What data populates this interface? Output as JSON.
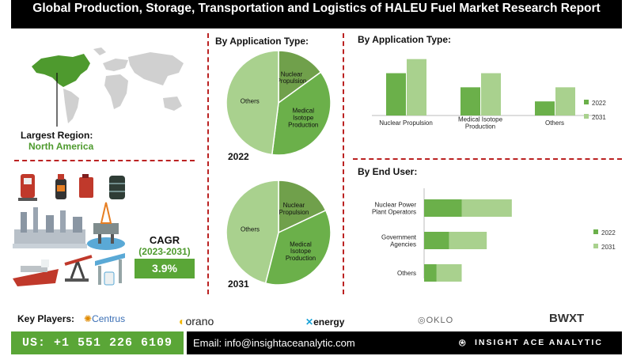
{
  "title": "Global Production, Storage, Transportation and Logistics of HALEU Fuel Market Research Report",
  "region": {
    "label": "Largest Region:",
    "value": "North America"
  },
  "cagr": {
    "label": "CAGR",
    "years": "(2023-2031)",
    "value": "3.9%"
  },
  "key_players": {
    "label": "Key Players:",
    "logos": [
      "Centrus",
      "orano",
      "energy",
      "OKLO",
      "BWXT"
    ]
  },
  "contact": {
    "phone": "US: +1 551 226 6109",
    "email": "Email: info@insightaceanalytic.com",
    "brand": "INSIGHT ACE ANALYTIC"
  },
  "colors": {
    "dark_green": "#4e9a2e",
    "mid_green": "#6bb04a",
    "light_green": "#a9d18e",
    "olive": "#70a04b",
    "accent_red": "#b22222"
  },
  "icons": [
    "world-map-icon",
    "fuel-pump-icon",
    "oil-bottle-icon",
    "jerrycan-icon",
    "barrel-icon",
    "refinery-icon",
    "oil-rig-icon",
    "tanker-ship-icon",
    "pumpjack-icon",
    "gas-station-icon"
  ],
  "chart_data": [
    {
      "type": "pie",
      "title": "By Application Type:",
      "year_label": "2022",
      "categories": [
        "Nuclear Propulsion",
        "Medical Isotope Production",
        "Others"
      ],
      "labels": [
        "Nuclear\nPropulsion",
        "Medical\nIsotope\nProduction",
        "Others"
      ],
      "values": [
        15,
        37,
        48
      ]
    },
    {
      "type": "pie",
      "title": "",
      "year_label": "2031",
      "categories": [
        "Nuclear Propulsion",
        "Medical Isotope Production",
        "Others"
      ],
      "labels": [
        "Nuclear\nPropulsion",
        "Medical\nIsotope\nProduction",
        "Others"
      ],
      "values": [
        18,
        36,
        46
      ]
    },
    {
      "type": "bar",
      "title": "By Application Type:",
      "categories": [
        "Nuclear Propulsion",
        "Medical Isotope\nProduction",
        "Others"
      ],
      "series": [
        {
          "name": "2022",
          "values": [
            48,
            32,
            16
          ]
        },
        {
          "name": "2031",
          "values": [
            64,
            48,
            32
          ]
        }
      ],
      "ylim": [
        0,
        70
      ],
      "grid": false,
      "legend": "right"
    },
    {
      "type": "bar",
      "orientation": "horizontal-stacked",
      "title": "By End User:",
      "categories": [
        "Nuclear Power\nPlant Operators",
        "Government\nAgencies",
        "Others"
      ],
      "series": [
        {
          "name": "2022",
          "values": [
            30,
            20,
            10
          ]
        },
        {
          "name": "2031",
          "values": [
            40,
            30,
            20
          ]
        }
      ],
      "xlim": [
        0,
        120
      ],
      "grid": false,
      "legend": "right"
    }
  ]
}
